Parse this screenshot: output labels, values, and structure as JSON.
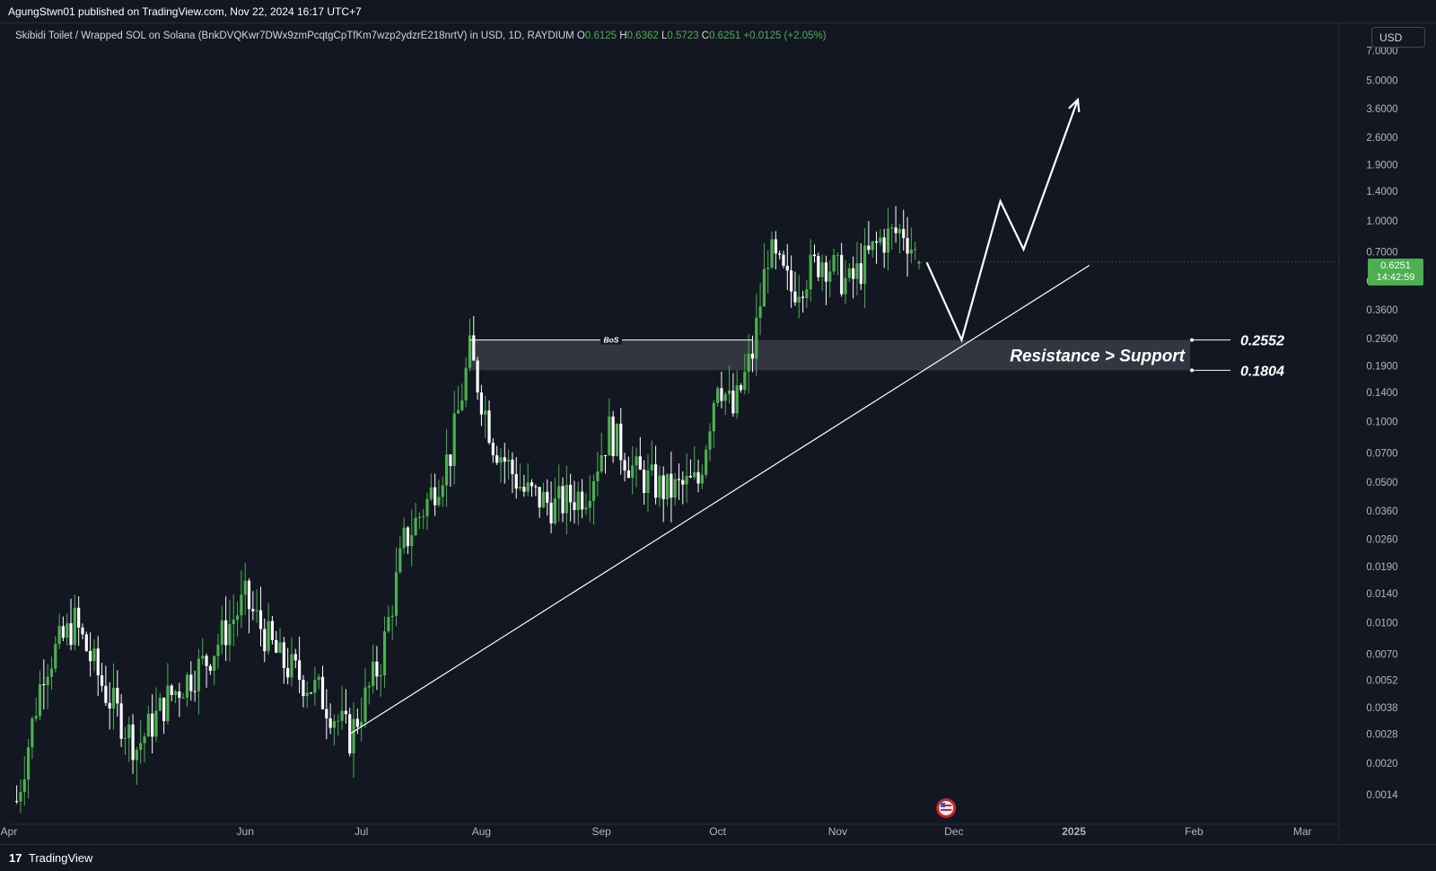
{
  "header": {
    "publisher_line": "AgungStwn01 published on TradingView.com, Nov 22, 2024 16:17 UTC+7"
  },
  "symbol": {
    "title": "Skibidi Toilet / Wrapped SOL on Solana (BnkDVQKwr7DWx9zmPcqtgCpTfKm7wzp2ydzrE218nrtV) in USD, 1D, RAYDIUM",
    "o_label": "O",
    "o_value": "0.6125",
    "h_label": "H",
    "h_value": "0.6362",
    "l_label": "L",
    "l_value": "0.5723",
    "c_label": "C",
    "c_value": "0.6251",
    "change": "+0.0125 (+2.05%)"
  },
  "currency": "USD",
  "price_tag": {
    "price": "0.6251",
    "countdown": "14:42:59"
  },
  "footer": {
    "brand": "TradingView",
    "logo_glyph": "17"
  },
  "colors": {
    "background": "#131722",
    "up_candle": "#4caf50",
    "down_candle": "#ffffff",
    "zone_fill": "#3a3c45"
  },
  "chart_data": {
    "type": "candlestick",
    "y_scale": "log",
    "ylim": [
      0.00115,
      8.3
    ],
    "xlim": [
      "2024-04-01",
      "2025-03-10"
    ],
    "x_ticks": [
      "Apr",
      "Jun",
      "Jul",
      "Aug",
      "Sep",
      "Oct",
      "Nov",
      "Dec",
      "2025",
      "Feb",
      "Mar"
    ],
    "y_ticks": [
      "7.0000",
      "5.0000",
      "3.6000",
      "2.6000",
      "1.9000",
      "1.4000",
      "1.0000",
      "0.7000",
      "0.5000",
      "0.3600",
      "0.2600",
      "0.1900",
      "0.1400",
      "0.1000",
      "0.0700",
      "0.0500",
      "0.0360",
      "0.0260",
      "0.0190",
      "0.0140",
      "0.0100",
      "0.0070",
      "0.0052",
      "0.0038",
      "0.0028",
      "0.0020",
      "0.0014"
    ],
    "price_path": [
      {
        "date": "2024-04-03",
        "close": 0.0013
      },
      {
        "date": "2024-04-10",
        "close": 0.006
      },
      {
        "date": "2024-04-18",
        "close": 0.01
      },
      {
        "date": "2024-04-26",
        "close": 0.0045
      },
      {
        "date": "2024-05-04",
        "close": 0.0024
      },
      {
        "date": "2024-05-12",
        "close": 0.0042
      },
      {
        "date": "2024-05-22",
        "close": 0.0065
      },
      {
        "date": "2024-06-01",
        "close": 0.013
      },
      {
        "date": "2024-06-10",
        "close": 0.0065
      },
      {
        "date": "2024-06-20",
        "close": 0.0045
      },
      {
        "date": "2024-06-28",
        "close": 0.0027
      },
      {
        "date": "2024-07-06",
        "close": 0.0065
      },
      {
        "date": "2024-07-12",
        "close": 0.025
      },
      {
        "date": "2024-07-18",
        "close": 0.04
      },
      {
        "date": "2024-07-24",
        "close": 0.07
      },
      {
        "date": "2024-07-29",
        "close": 0.22
      },
      {
        "date": "2024-08-04",
        "close": 0.08
      },
      {
        "date": "2024-08-12",
        "close": 0.045
      },
      {
        "date": "2024-08-20",
        "close": 0.038
      },
      {
        "date": "2024-08-28",
        "close": 0.045
      },
      {
        "date": "2024-09-03",
        "close": 0.09
      },
      {
        "date": "2024-09-10",
        "close": 0.055
      },
      {
        "date": "2024-09-18",
        "close": 0.045
      },
      {
        "date": "2024-09-26",
        "close": 0.05
      },
      {
        "date": "2024-10-01",
        "close": 0.17
      },
      {
        "date": "2024-10-05",
        "close": 0.11
      },
      {
        "date": "2024-10-10",
        "close": 0.22
      },
      {
        "date": "2024-10-14",
        "close": 0.7
      },
      {
        "date": "2024-10-20",
        "close": 0.45
      },
      {
        "date": "2024-10-28",
        "close": 0.65
      },
      {
        "date": "2024-11-04",
        "close": 0.48
      },
      {
        "date": "2024-11-12",
        "close": 0.8
      },
      {
        "date": "2024-11-18",
        "close": 0.9
      },
      {
        "date": "2024-11-22",
        "close": 0.6251
      }
    ],
    "annotations": {
      "bos_label": "BoS",
      "zone_label": "Resistance > Support",
      "zone_top": 0.2552,
      "zone_bottom": 0.1804,
      "zone_top_label": "0.2552",
      "zone_bottom_label": "0.1804",
      "trendline": [
        {
          "date": "2024-06-28",
          "price": 0.0028
        },
        {
          "date": "2025-01-05",
          "price": 0.6
        }
      ],
      "projection_path": [
        {
          "date": "2024-11-24",
          "price": 0.62
        },
        {
          "date": "2024-12-03",
          "price": 0.255
        },
        {
          "date": "2024-12-13",
          "price": 1.25
        },
        {
          "date": "2024-12-19",
          "price": 0.72
        },
        {
          "date": "2025-01-02",
          "price": 4.0
        }
      ]
    }
  }
}
